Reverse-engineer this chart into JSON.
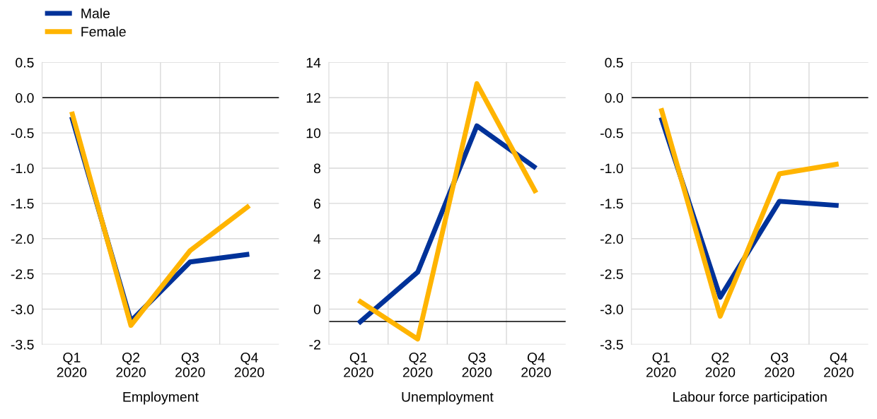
{
  "chart_data": [
    {
      "type": "line",
      "xlabel": "Employment",
      "categories": [
        "Q1\n2020",
        "Q2\n2020",
        "Q3\n2020",
        "Q4\n2020"
      ],
      "series": [
        {
          "name": "Male",
          "color": "#003299",
          "values": [
            -0.27,
            -3.17,
            -2.33,
            -2.22
          ]
        },
        {
          "name": "Female",
          "color": "#ffb400",
          "values": [
            -0.2,
            -3.23,
            -2.17,
            -1.53
          ]
        }
      ],
      "ylim": [
        -3.5,
        0.5
      ],
      "yticks": [
        {
          "value": -3.5,
          "label": "-3.5"
        },
        {
          "value": -3.0,
          "label": "-3.0"
        },
        {
          "value": -2.5,
          "label": "-2.5"
        },
        {
          "value": -2.0,
          "label": "-2.0"
        },
        {
          "value": -1.5,
          "label": "-1.5"
        },
        {
          "value": -1.0,
          "label": "-1.0"
        },
        {
          "value": -0.5,
          "label": "-0.5"
        },
        {
          "value": 0.0,
          "label": "0.0"
        },
        {
          "value": 0.5,
          "label": "0.5"
        }
      ],
      "ref_lines": [
        {
          "axis": "y",
          "value": 0,
          "color": "#000000"
        }
      ],
      "grid": true,
      "legend": "top left"
    },
    {
      "type": "line",
      "xlabel": "Unemployment",
      "categories": [
        "Q1\n2020",
        "Q2\n2020",
        "Q3\n2020",
        "Q4\n2020"
      ],
      "series": [
        {
          "name": "Male",
          "color": "#003299",
          "values": [
            -0.8,
            2.1,
            10.4,
            8.0
          ]
        },
        {
          "name": "Female",
          "color": "#ffb400",
          "values": [
            0.5,
            -1.7,
            12.8,
            6.6
          ]
        }
      ],
      "ylim": [
        -2,
        14
      ],
      "yticks": [
        -2,
        0,
        2,
        4,
        6,
        8,
        10,
        12,
        14
      ],
      "ref_lines": [
        {
          "axis": "y",
          "value": -0.7,
          "color": "#000000"
        }
      ],
      "grid": true
    },
    {
      "type": "line",
      "xlabel": "Labour force participation",
      "categories": [
        "Q1\n2020",
        "Q2\n2020",
        "Q3\n2020",
        "Q4\n2020"
      ],
      "series": [
        {
          "name": "Male",
          "color": "#003299",
          "values": [
            -0.28,
            -2.83,
            -1.47,
            -1.53
          ]
        },
        {
          "name": "Female",
          "color": "#ffb400",
          "values": [
            -0.15,
            -3.1,
            -1.08,
            -0.94
          ]
        }
      ],
      "ylim": [
        -3.5,
        0.5
      ],
      "yticks": [
        {
          "value": -3.5,
          "label": "-3.5"
        },
        {
          "value": -3.0,
          "label": "-3.0"
        },
        {
          "value": -2.5,
          "label": "-2.5"
        },
        {
          "value": -2.0,
          "label": "-2.0"
        },
        {
          "value": -1.5,
          "label": "-1.5"
        },
        {
          "value": -1.0,
          "label": "-1.0"
        },
        {
          "value": -0.5,
          "label": "-0.5"
        },
        {
          "value": 0.0,
          "label": "0.0"
        },
        {
          "value": 0.5,
          "label": "0.5"
        }
      ],
      "ref_lines": [
        {
          "axis": "y",
          "value": 0,
          "color": "#000000"
        }
      ],
      "grid": true
    }
  ]
}
